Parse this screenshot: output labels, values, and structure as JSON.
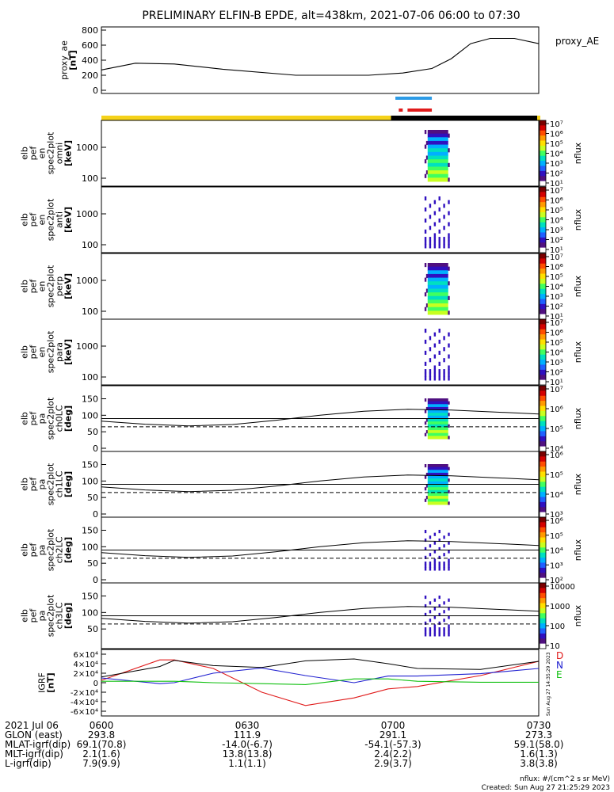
{
  "title": "PRELIMINARY ELFIN-B EPDE, alt=438km, 2021-07-06 06:00 to 07:30",
  "colors": {
    "gold": "#f5d21a",
    "blue_bar": "#2c9be6",
    "red_bar": "#e01a1a",
    "series_D": "#e01a1a",
    "series_N": "#2020d0",
    "series_E": "#10c010"
  },
  "ae_panel": {
    "ylabel": [
      "proxy_ae",
      "[nT]"
    ],
    "legend": "proxy_AE",
    "yticks": [
      "800",
      "600",
      "400",
      "200",
      "0"
    ]
  },
  "spec_panels": [
    {
      "ylabel": [
        "elb",
        "pef",
        "en",
        "spec2plot",
        "omni",
        "[keV]"
      ],
      "yticks": [
        "1000",
        "100"
      ],
      "cbar_ticks": [
        "10⁷",
        "10⁶",
        "10⁵",
        "10⁴",
        "10³",
        "10²",
        "10¹"
      ],
      "cbar_label": "nflux"
    },
    {
      "ylabel": [
        "elb",
        "pef",
        "en",
        "spec2plot",
        "anti",
        "[keV]"
      ],
      "yticks": [
        "1000",
        "100"
      ],
      "cbar_ticks": [
        "10⁷",
        "10⁶",
        "10⁵",
        "10⁴",
        "10³",
        "10²",
        "10¹"
      ],
      "cbar_label": "nflux"
    },
    {
      "ylabel": [
        "elb",
        "pef",
        "en",
        "spec2plot",
        "perp",
        "[keV]"
      ],
      "yticks": [
        "1000",
        "100"
      ],
      "cbar_ticks": [
        "10⁷",
        "10⁶",
        "10⁵",
        "10⁴",
        "10³",
        "10²",
        "10¹"
      ],
      "cbar_label": "nflux"
    },
    {
      "ylabel": [
        "elb",
        "pef",
        "en",
        "spec2plot",
        "para",
        "[keV]"
      ],
      "yticks": [
        "1000",
        "100"
      ],
      "cbar_ticks": [
        "10⁷",
        "10⁶",
        "10⁵",
        "10⁴",
        "10³",
        "10²",
        "10¹"
      ],
      "cbar_label": "nflux"
    }
  ],
  "pa_panels": [
    {
      "ylabel": [
        "elb",
        "pef",
        "pa",
        "spec2plot",
        "ch0LC",
        "[deg]"
      ],
      "yticks": [
        "150",
        "100",
        "50",
        "0"
      ],
      "cbar_ticks": [
        "10⁷",
        "10⁶",
        "10⁵",
        "10⁴"
      ],
      "cbar_label": "nflux"
    },
    {
      "ylabel": [
        "elb",
        "pef",
        "pa",
        "spec2plot",
        "ch1LC",
        "[deg]"
      ],
      "yticks": [
        "150",
        "100",
        "50",
        "0"
      ],
      "cbar_ticks": [
        "10⁶",
        "10⁵",
        "10⁴",
        "10³"
      ],
      "cbar_label": "nflux"
    },
    {
      "ylabel": [
        "elb",
        "pef",
        "pa",
        "spec2plot",
        "ch2LC",
        "[deg]"
      ],
      "yticks": [
        "150",
        "100",
        "50",
        "0"
      ],
      "cbar_ticks": [
        "10⁶",
        "10⁵",
        "10⁴",
        "10³",
        "10²"
      ],
      "cbar_label": "nflux"
    },
    {
      "ylabel": [
        "elb",
        "pef",
        "pa",
        "spec2plot",
        "ch3LC",
        "[deg]"
      ],
      "yticks": [
        "150",
        "100",
        "50"
      ],
      "cbar_ticks": [
        "10000",
        "1000",
        "100",
        "10"
      ],
      "cbar_label": "nflux"
    }
  ],
  "igrf_panel": {
    "ylabel": [
      "IGRF",
      "[nT]"
    ],
    "yticks": [
      "6×10⁴",
      "4×10⁴",
      "2×10⁴",
      "0",
      "-2×10⁴",
      "-4×10⁴",
      "-6×10⁴"
    ],
    "legend": [
      "D",
      "N",
      "E"
    ],
    "stamp": "Sun Aug 27 14:35:29 2023"
  },
  "chart_data": {
    "type": "line",
    "title": "PRELIMINARY ELFIN-B EPDE, alt=438km, 2021-07-06 06:00 to 07:30",
    "x_range": [
      "2021-07-06 06:00",
      "2021-07-06 07:30"
    ],
    "proxy_ae": {
      "x_min": [
        0,
        7,
        15,
        25,
        40,
        55,
        62,
        68,
        72,
        76,
        80,
        85,
        90
      ],
      "y_nT": [
        270,
        360,
        350,
        280,
        200,
        200,
        230,
        290,
        420,
        620,
        690,
        690,
        620
      ],
      "ylim": [
        0,
        800
      ]
    },
    "igrf": {
      "x_min": [
        0,
        12,
        15,
        23,
        33,
        42,
        52,
        59,
        65,
        78,
        90
      ],
      "D": [
        5000,
        48000,
        48000,
        30000,
        -20000,
        -48000,
        -32000,
        -13000,
        -8000,
        15000,
        45000
      ],
      "N": [
        10000,
        -2000,
        0,
        20000,
        31000,
        15000,
        0,
        14000,
        14000,
        19000,
        30000
      ],
      "E": [
        3000,
        3000,
        3000,
        0,
        -2000,
        -4000,
        8000,
        8000,
        3000,
        1000,
        1000
      ]
    },
    "x_tick_labels": [
      "0600",
      "0630",
      "0700",
      "0730"
    ],
    "info_rows": [
      {
        "label": "2021 Jul 06",
        "values": [
          "0600",
          "0630",
          "0700",
          "0730"
        ]
      },
      {
        "label": "GLON (east)",
        "values": [
          "293.8",
          "111.9",
          "291.1",
          "273.3"
        ]
      },
      {
        "label": "MLAT-igrf(dip)",
        "values": [
          "69.1(70.8)",
          "-14.0(-6.7)",
          "-54.1(-57.3)",
          "59.1(58.0)"
        ]
      },
      {
        "label": "MLT-igrf(dip)",
        "values": [
          "2.1(1.6)",
          "13.8(13.8)",
          "2.4(2.2)",
          "1.6(1.3)"
        ]
      },
      {
        "label": "L-igrf(dip)",
        "values": [
          "7.9(9.9)",
          "1.1(1.1)",
          "2.9(3.7)",
          "3.8(3.8)"
        ]
      }
    ]
  },
  "footer": {
    "units": "nflux: #/(cm^2 s sr MeV)",
    "created": "Created: Sun Aug 27 21:25:29 2023"
  }
}
